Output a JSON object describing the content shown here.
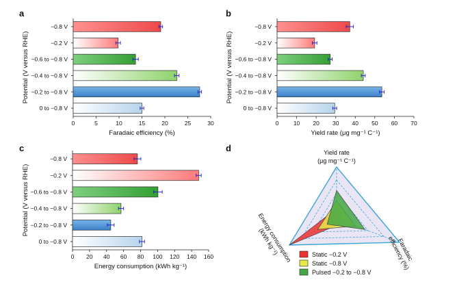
{
  "chart_data": [
    {
      "panel": "a",
      "type": "bar",
      "orientation": "horizontal",
      "ylabel": "Potential (V versus RHE)",
      "xlabel": "Faradaic efficiency (%)",
      "xlim": [
        0,
        30
      ],
      "xticks": [
        0,
        5,
        10,
        15,
        20,
        25,
        30
      ],
      "categories": [
        "−0.8 V",
        "−0.2 V",
        "−0.6 to −0.8 V",
        "−0.4 to −0.8 V",
        "−0.2 to −0.8 V",
        "0 to −0.8 V"
      ],
      "values": [
        19.1,
        9.8,
        13.6,
        22.6,
        27.6,
        15.0
      ],
      "errors": [
        0.4,
        0.5,
        0.6,
        0.5,
        0.4,
        0.4
      ],
      "fill_from": [
        "#ff8f8f",
        "#ffffff",
        "#7fcf7f",
        "#ffffff",
        "#78b4e8",
        "#ffffff"
      ],
      "fill_to": [
        "#ee4a4a",
        "#ff7a7a",
        "#33a033",
        "#8ed26a",
        "#3a7fc8",
        "#b6d4ec"
      ],
      "fill_dir": [
        "h",
        "h",
        "h",
        "h",
        "v",
        "h"
      ]
    },
    {
      "panel": "b",
      "type": "bar",
      "orientation": "horizontal",
      "ylabel": "Potential (V versus RHE)",
      "xlabel": "Yield rate (μg mg⁻¹ C⁻¹)",
      "xlim": [
        0,
        70
      ],
      "xticks": [
        0,
        10,
        20,
        30,
        40,
        50,
        60,
        70
      ],
      "categories": [
        "−0.8 V",
        "−0.2 V",
        "−0.6 to −0.8 V",
        "−0.4 to −0.8 V",
        "−0.2 to −0.8 V",
        "0 to −0.8 V"
      ],
      "values": [
        37.2,
        19.2,
        27.2,
        44.1,
        53.6,
        29.5
      ],
      "errors": [
        1.8,
        1.2,
        1.0,
        1.0,
        1.2,
        1.0
      ],
      "fill_from": [
        "#ff8f8f",
        "#ffffff",
        "#7fcf7f",
        "#ffffff",
        "#78b4e8",
        "#ffffff"
      ],
      "fill_to": [
        "#ee4a4a",
        "#ff7a7a",
        "#33a033",
        "#8ed26a",
        "#3a7fc8",
        "#b6d4ec"
      ],
      "fill_dir": [
        "h",
        "h",
        "h",
        "h",
        "v",
        "h"
      ]
    },
    {
      "panel": "c",
      "type": "bar",
      "orientation": "horizontal",
      "ylabel": "Potential (V versus RHE)",
      "xlabel": "Energy consumption (kWh kg⁻¹)",
      "xlim": [
        0,
        160
      ],
      "xticks": [
        0,
        20,
        40,
        60,
        80,
        100,
        120,
        140,
        160
      ],
      "categories": [
        "−0.8 V",
        "−0.2 V",
        "−0.6 to −0.8 V",
        "−0.4 to −0.8 V",
        "−0.2 to −0.8 V",
        "0 to −0.8 V"
      ],
      "values": [
        76.3,
        148.3,
        100.4,
        57.0,
        44.9,
        81.6
      ],
      "errors": [
        4,
        3,
        5,
        3,
        4,
        3
      ],
      "fill_from": [
        "#ff8f8f",
        "#ffffff",
        "#7fcf7f",
        "#ffffff",
        "#78b4e8",
        "#ffffff"
      ],
      "fill_to": [
        "#ee4a4a",
        "#ff7a7a",
        "#33a033",
        "#8ed26a",
        "#3a7fc8",
        "#b6d4ec"
      ],
      "fill_dir": [
        "h",
        "h",
        "h",
        "h",
        "v",
        "h"
      ]
    },
    {
      "panel": "d",
      "type": "radar",
      "axes": [
        {
          "label_lines": [
            "Yield rate",
            "(μg mg⁻¹ C⁻¹)"
          ]
        },
        {
          "label_lines": [
            "Faradaic",
            "efficiency (%)"
          ]
        },
        {
          "label_lines": [
            "Energy consumption",
            "(kWh kg⁻¹)"
          ]
        }
      ],
      "series": [
        {
          "name": "Static −0.2 V",
          "color": "#ee3333",
          "values": [
            0.2,
            0.13,
            1.0
          ]
        },
        {
          "name": "Static −0.8 V",
          "color": "#e8e84a",
          "values": [
            0.35,
            0.3,
            0.4
          ]
        },
        {
          "name": "Pulsed −0.2 to −0.8 V",
          "color": "#44a844",
          "values": [
            0.55,
            0.45,
            0.2
          ]
        }
      ],
      "grid_levels": [
        0.25,
        0.5,
        0.75,
        1.0
      ],
      "outer_color": "#3aa6d8",
      "fill_color": "#e9e5f4"
    }
  ],
  "panel_letters": {
    "a": "a",
    "b": "b",
    "c": "c",
    "d": "d"
  },
  "legend": {
    "s1": "Static −0.2 V",
    "s2": "Static −0.8 V",
    "s3": "Pulsed −0.2 to −0.8 V"
  },
  "radar_labels": {
    "yield_1": "Yield rate",
    "yield_2": "(μg mg⁻¹ C⁻¹)",
    "fe_1": "Faradaic",
    "fe_2": "efficiency (%)",
    "ec_1": "Energy consumption",
    "ec_2": "(kWh kg⁻¹)"
  }
}
